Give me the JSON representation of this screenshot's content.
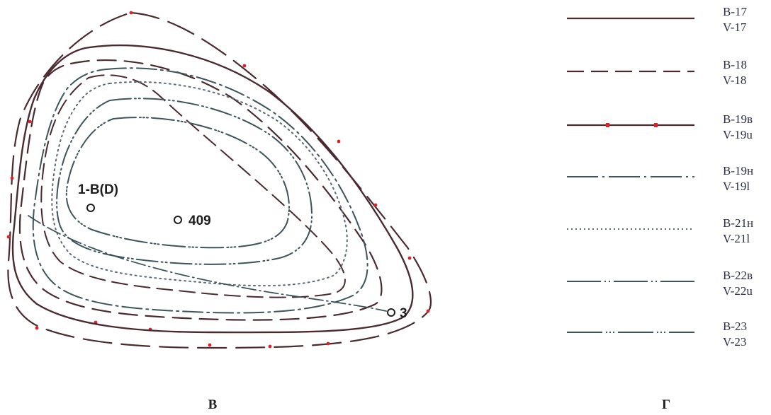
{
  "panel_left": {
    "letter": "В",
    "points": [
      {
        "id": "p1",
        "label": "1-B(D)"
      },
      {
        "id": "p409",
        "label": "409"
      },
      {
        "id": "p3",
        "label": "3"
      }
    ]
  },
  "panel_right": {
    "letter": "Г",
    "legend": [
      {
        "id": "b17",
        "top": "B-17",
        "bottom": "V-17",
        "color": "#4a2a2e",
        "style": "solid"
      },
      {
        "id": "b18",
        "top": "B-18",
        "bottom": "V-18",
        "color": "#4a2a2e",
        "style": "dashed"
      },
      {
        "id": "b19v",
        "top": "B-19в",
        "bottom": "V-19u",
        "color": "#4a2a2e",
        "style": "dash-red-dot"
      },
      {
        "id": "b19n",
        "top": "B-19н",
        "bottom": "V-19l",
        "color": "#3d555a",
        "style": "dash-dot"
      },
      {
        "id": "b21n",
        "top": "B-21н",
        "bottom": "V-21l",
        "color": "#5a6878",
        "style": "dotted"
      },
      {
        "id": "b22v",
        "top": "B-22в",
        "bottom": "V-22u",
        "color": "#3d555a",
        "style": "dash-dot-dot"
      },
      {
        "id": "b23",
        "top": "B-23",
        "bottom": "V-23",
        "color": "#3d555a",
        "style": "dash-triple-dot"
      }
    ]
  },
  "colors": {
    "brown": "#4a2a2e",
    "teal": "#3d555a",
    "slate": "#5a6878",
    "red_dot": "#d8232a"
  }
}
